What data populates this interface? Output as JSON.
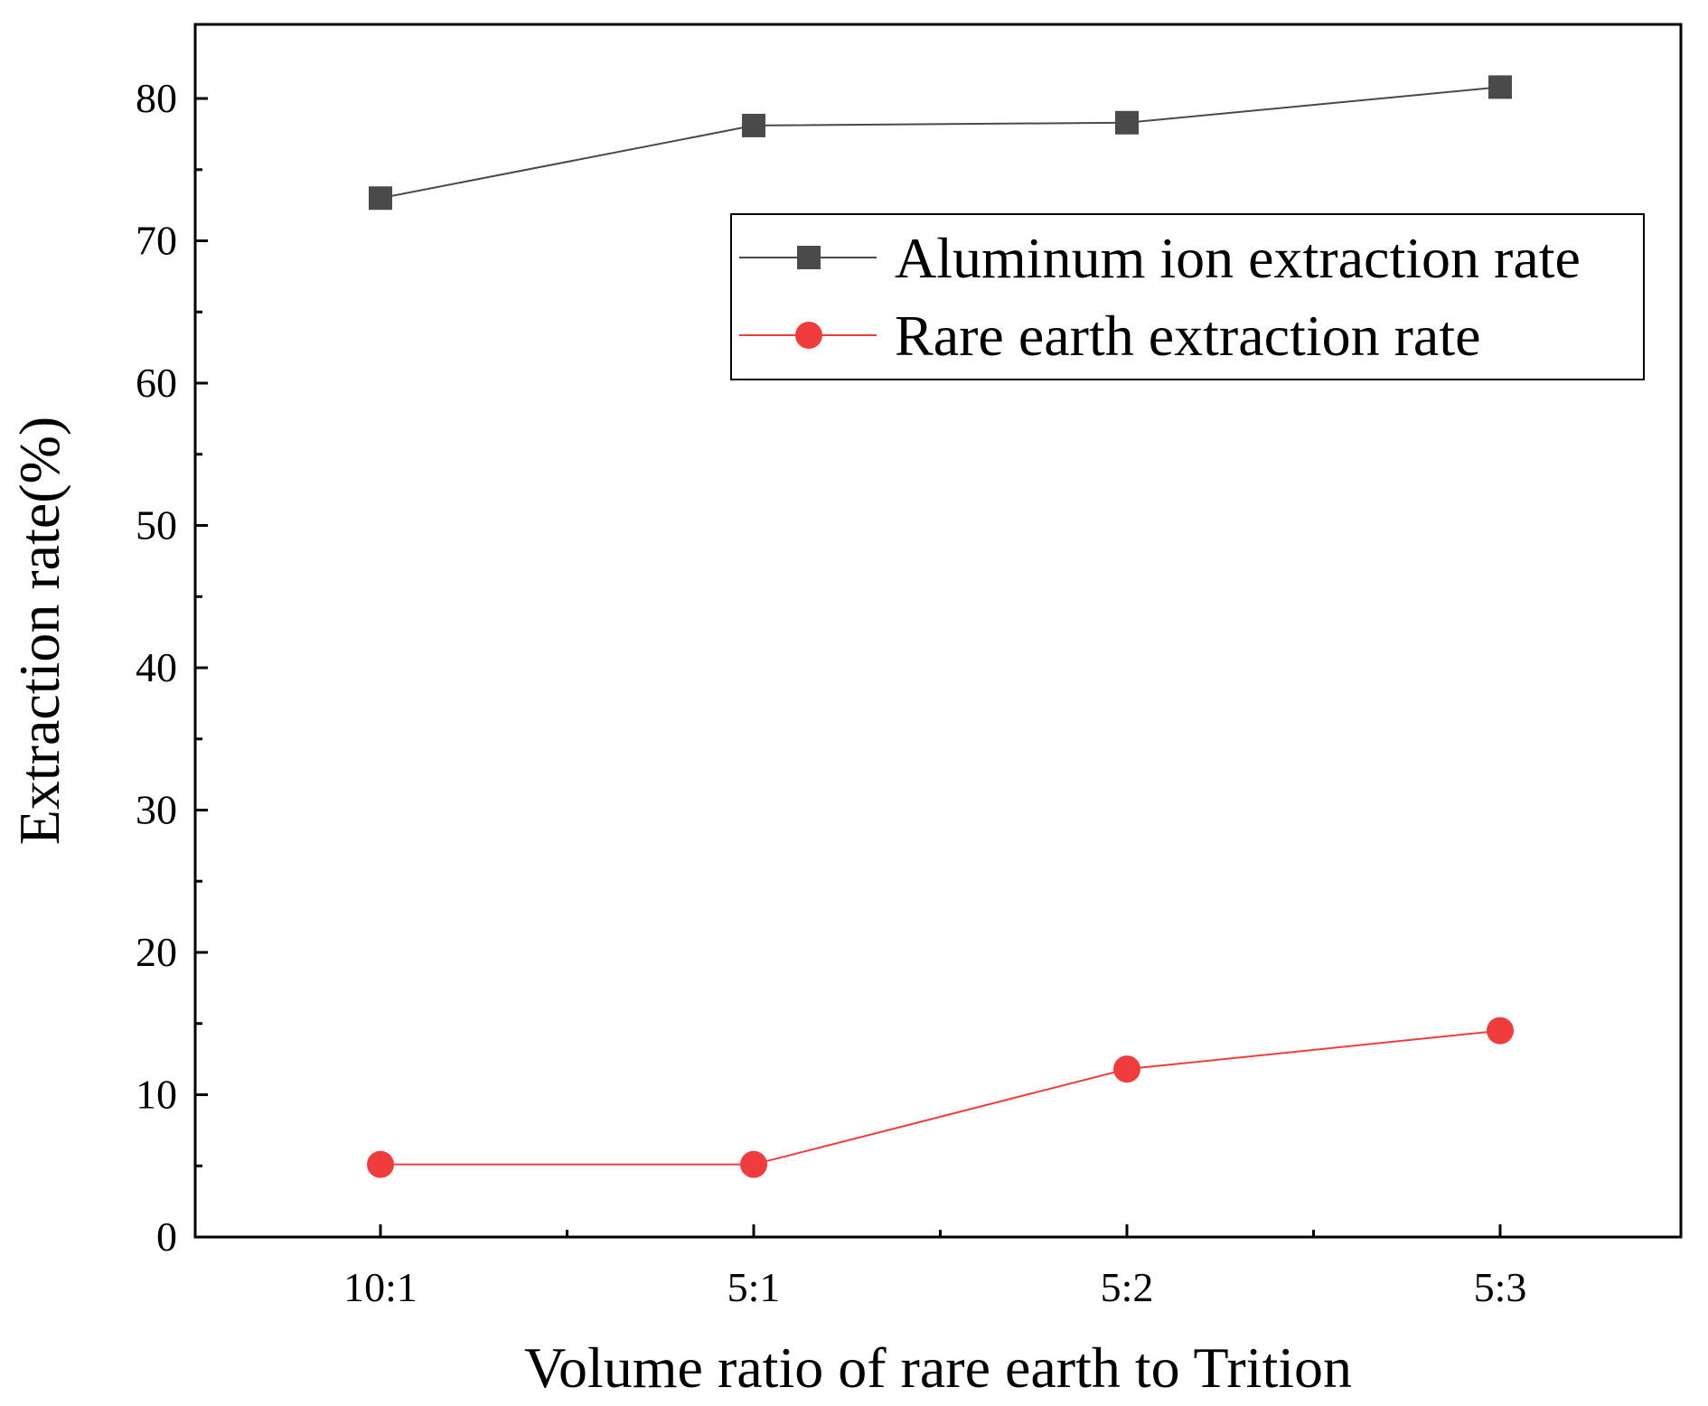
{
  "chart_data": {
    "type": "line",
    "title": "",
    "xlabel": "Volume ratio of rare earth to Trition",
    "ylabel": "Extraction rate(%)",
    "categories": [
      "10:1",
      "5:1",
      "5:2",
      "5:3"
    ],
    "ylim": [
      0,
      85
    ],
    "yticks": [
      0,
      10,
      20,
      30,
      40,
      50,
      60,
      70,
      80
    ],
    "grid": false,
    "legend_position": "top-right",
    "series": [
      {
        "name": "Aluminum ion extraction rate",
        "marker": "square",
        "color": "#4a4a4a",
        "values": [
          73.0,
          78.1,
          78.3,
          80.8
        ]
      },
      {
        "name": "Rare earth extraction rate",
        "marker": "circle",
        "color": "#f03c3c",
        "values": [
          5.1,
          5.1,
          11.8,
          14.5
        ]
      }
    ]
  }
}
